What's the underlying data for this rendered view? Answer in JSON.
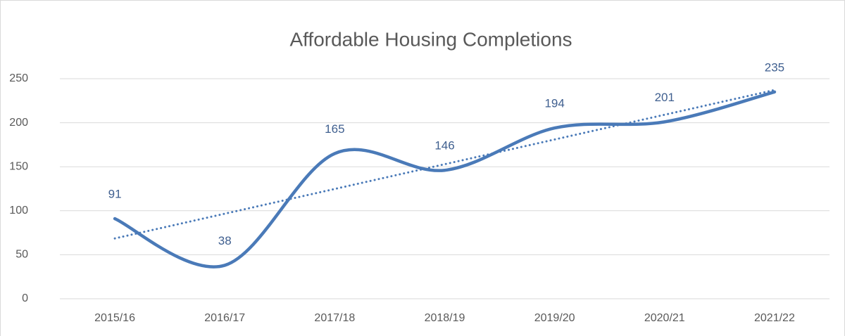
{
  "chart_data": {
    "type": "line",
    "title": "Affordable Housing Completions",
    "categories": [
      "2015/16",
      "2016/17",
      "2017/18",
      "2018/19",
      "2019/20",
      "2020/21",
      "2021/22"
    ],
    "values": [
      91,
      38,
      165,
      146,
      194,
      201,
      235
    ],
    "color": "#4a7ab8",
    "label_color": "#3f5f8f",
    "smooth": true,
    "trendline": "linear",
    "ylim": [
      0,
      250
    ],
    "yticks": [
      0,
      50,
      100,
      150,
      200,
      250
    ],
    "grid": true
  }
}
